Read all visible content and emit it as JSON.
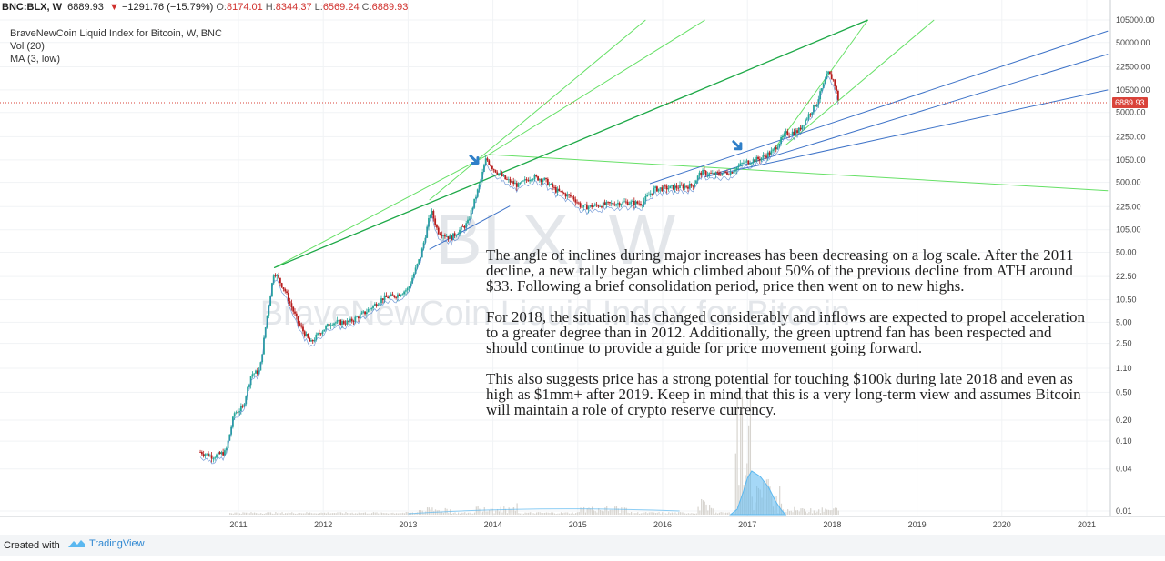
{
  "header": {
    "symbol": "BNC:BLX, W",
    "last": "6889.93",
    "change": "−1291.76 (−15.79%)",
    "open_label": "O:",
    "open": "8174.01",
    "high_label": "H:",
    "high": "8344.37",
    "low_label": "L:",
    "low": "6569.24",
    "close_label": "C:",
    "close": "6889.93"
  },
  "legend": {
    "title": "BraveNewCoin Liquid Index for Bitcoin, W, BNC",
    "vol": "Vol (20)",
    "ma": "MA (3, low)"
  },
  "watermark": {
    "big": "BLX, W",
    "small": "BraveNewCoin Liquid Index for Bitcoin"
  },
  "annotation": {
    "p1": "The angle of inclines during major increases has been decreasing on a log scale. After the 2011 decline, a new rally began which climbed about 50% of the previous decline from ATH around $33. Following a brief consolidation period, price then went on to new highs.",
    "p2": "For 2018, the situation has changed considerably and inflows are expected to propel acceleration to a greater degree than in 2012. Additionally, the green uptrend fan has been respected and should continue to provide a guide for price movement going forward.",
    "p3": "This also suggests price has a strong potential for touching $100k during late 2018 and even as high as $1mm+ after 2019. Keep in mind that this is a very long-term view and assumes Bitcoin will maintain a role of crypto reserve currency."
  },
  "footer": {
    "created_with": "Created with",
    "brand": "TradingView"
  },
  "colors": {
    "up": "#26a69a",
    "down": "#b71c1c",
    "green_line": "#66e066",
    "green_line_dark": "#1fa84a",
    "blue_line": "#3e73c8",
    "volume": "#5bb8f0",
    "price_line": "#d9433a",
    "arrow": "#2f7fc8"
  },
  "chart_data": {
    "type": "candlestick",
    "title": "BraveNewCoin Liquid Index for Bitcoin, W, BNC",
    "y_scale": "log",
    "ylim": [
      0.01,
      105000
    ],
    "y_ticks": [
      "105000.00",
      "50000.00",
      "22500.00",
      "10500.00",
      "5000.00",
      "2250.00",
      "1050.00",
      "500.00",
      "225.00",
      "105.00",
      "50.00",
      "22.50",
      "10.50",
      "5.00",
      "2.50",
      "1.10",
      "0.50",
      "0.20",
      "0.10",
      "0.04",
      "0.01"
    ],
    "x_ticks": [
      "2011",
      "2012",
      "2013",
      "2014",
      "2015",
      "2016",
      "2017",
      "2018",
      "2019",
      "2020",
      "2021"
    ],
    "last_price": "6889.93",
    "price_path": [
      {
        "t": 2010.55,
        "y": 0.07
      },
      {
        "t": 2010.7,
        "y": 0.06
      },
      {
        "t": 2010.85,
        "y": 0.07
      },
      {
        "t": 2010.95,
        "y": 0.25
      },
      {
        "t": 2011.05,
        "y": 0.3
      },
      {
        "t": 2011.15,
        "y": 0.9
      },
      {
        "t": 2011.25,
        "y": 1.0
      },
      {
        "t": 2011.35,
        "y": 8
      },
      {
        "t": 2011.42,
        "y": 27
      },
      {
        "t": 2011.55,
        "y": 14
      },
      {
        "t": 2011.7,
        "y": 5
      },
      {
        "t": 2011.85,
        "y": 2.5
      },
      {
        "t": 2011.95,
        "y": 3.5
      },
      {
        "t": 2012.1,
        "y": 5
      },
      {
        "t": 2012.3,
        "y": 5
      },
      {
        "t": 2012.5,
        "y": 7
      },
      {
        "t": 2012.7,
        "y": 11
      },
      {
        "t": 2012.85,
        "y": 12
      },
      {
        "t": 2013.0,
        "y": 15
      },
      {
        "t": 2013.15,
        "y": 45
      },
      {
        "t": 2013.27,
        "y": 200
      },
      {
        "t": 2013.35,
        "y": 100
      },
      {
        "t": 2013.5,
        "y": 80
      },
      {
        "t": 2013.7,
        "y": 130
      },
      {
        "t": 2013.85,
        "y": 500
      },
      {
        "t": 2013.92,
        "y": 1100
      },
      {
        "t": 2014.0,
        "y": 800
      },
      {
        "t": 2014.15,
        "y": 550
      },
      {
        "t": 2014.3,
        "y": 450
      },
      {
        "t": 2014.45,
        "y": 600
      },
      {
        "t": 2014.6,
        "y": 550
      },
      {
        "t": 2014.75,
        "y": 380
      },
      {
        "t": 2014.95,
        "y": 300
      },
      {
        "t": 2015.05,
        "y": 220
      },
      {
        "t": 2015.3,
        "y": 240
      },
      {
        "t": 2015.55,
        "y": 260
      },
      {
        "t": 2015.75,
        "y": 250
      },
      {
        "t": 2015.9,
        "y": 400
      },
      {
        "t": 2016.1,
        "y": 420
      },
      {
        "t": 2016.35,
        "y": 450
      },
      {
        "t": 2016.45,
        "y": 700
      },
      {
        "t": 2016.6,
        "y": 650
      },
      {
        "t": 2016.8,
        "y": 700
      },
      {
        "t": 2016.95,
        "y": 950
      },
      {
        "t": 2017.15,
        "y": 1100
      },
      {
        "t": 2017.3,
        "y": 1400
      },
      {
        "t": 2017.45,
        "y": 2500
      },
      {
        "t": 2017.6,
        "y": 2700
      },
      {
        "t": 2017.7,
        "y": 4200
      },
      {
        "t": 2017.82,
        "y": 7000
      },
      {
        "t": 2017.95,
        "y": 18500
      },
      {
        "t": 2018.02,
        "y": 14000
      },
      {
        "t": 2018.08,
        "y": 6889.93
      }
    ],
    "trend_lines": [
      {
        "color": "green",
        "from": {
          "t": 2011.42,
          "y": 30
        },
        "to": {
          "t": 2018.42,
          "y": 105000
        }
      },
      {
        "color": "green",
        "from": {
          "t": 2011.42,
          "y": 30
        },
        "to": {
          "t": 2013.95,
          "y": 1250
        }
      },
      {
        "color": "green",
        "from": {
          "t": 2013.95,
          "y": 1250
        },
        "to": {
          "t": 2021.25,
          "y": 380
        }
      },
      {
        "color": "green",
        "from": {
          "t": 2013.95,
          "y": 1250
        },
        "to": {
          "t": 2016.5,
          "y": 105000
        }
      },
      {
        "color": "green",
        "from": {
          "t": 2013.25,
          "y": 280
        },
        "to": {
          "t": 2015.8,
          "y": 105000
        }
      },
      {
        "color": "green",
        "from": {
          "t": 2017.3,
          "y": 1400
        },
        "to": {
          "t": 2018.42,
          "y": 105000
        }
      },
      {
        "color": "green",
        "from": {
          "t": 2017.45,
          "y": 1700
        },
        "to": {
          "t": 2019.2,
          "y": 105000
        }
      },
      {
        "color": "blue",
        "from": {
          "t": 2013.25,
          "y": 55
        },
        "to": {
          "t": 2014.2,
          "y": 230
        }
      },
      {
        "color": "blue",
        "from": {
          "t": 2015.85,
          "y": 480
        },
        "to": {
          "t": 2021.25,
          "y": 73000
        }
      },
      {
        "color": "blue",
        "from": {
          "t": 2016.5,
          "y": 600
        },
        "to": {
          "t": 2021.25,
          "y": 34000
        }
      },
      {
        "color": "blue",
        "from": {
          "t": 2016.5,
          "y": 600
        },
        "to": {
          "t": 2021.25,
          "y": 10500
        }
      }
    ],
    "arrows": [
      {
        "t": 2013.8,
        "y": 1000
      },
      {
        "t": 2016.9,
        "y": 1600
      }
    ]
  }
}
